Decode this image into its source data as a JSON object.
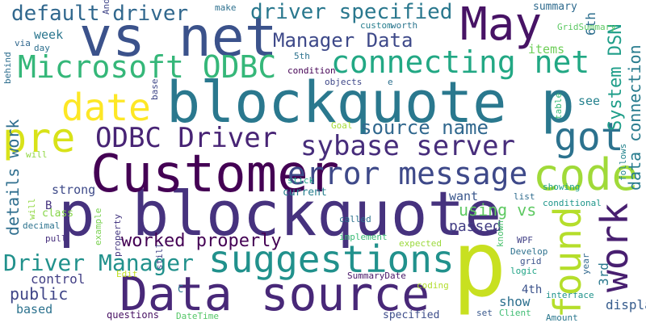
{
  "words": [
    {
      "text": "blockquote p",
      "color": "#2a788e"
    },
    {
      "text": "p blockquote",
      "color": "#46327e"
    },
    {
      "text": "vs net",
      "color": "#3b528b"
    },
    {
      "text": "Customer",
      "color": "#440154"
    },
    {
      "text": "Data source",
      "color": "#482878"
    },
    {
      "text": "May",
      "color": "#471365"
    },
    {
      "text": "p",
      "color": "#c8e020"
    },
    {
      "text": "suggestions",
      "color": "#21918c"
    },
    {
      "text": "connecting net",
      "color": "#22a884"
    },
    {
      "text": "Microsoft ODBC",
      "color": "#35b779"
    },
    {
      "text": "pre",
      "color": "#d8e219"
    },
    {
      "text": "date",
      "color": "#fde725"
    },
    {
      "text": "got",
      "color": "#2c728e"
    },
    {
      "text": "code",
      "color": "#a0da39"
    },
    {
      "text": "error message",
      "color": "#3e4989"
    },
    {
      "text": "sybase server",
      "color": "#472d7b"
    },
    {
      "text": "ODBC Driver",
      "color": "#482475"
    },
    {
      "text": "found",
      "color": "#b5de2b"
    },
    {
      "text": "work",
      "color": "#481f70"
    },
    {
      "text": "default driver",
      "color": "#31688e"
    },
    {
      "text": "driver specified",
      "color": "#2a788e"
    },
    {
      "text": "Manager Data",
      "color": "#3e4989"
    },
    {
      "text": "source name",
      "color": "#31688e"
    },
    {
      "text": "Driver Manager",
      "color": "#21918c"
    },
    {
      "text": "worked properly",
      "color": "#440154"
    },
    {
      "text": "System DSN",
      "color": "#1f9e89"
    },
    {
      "text": "data connection",
      "color": "#287c8e"
    },
    {
      "text": "details work",
      "color": "#2e6e8e"
    },
    {
      "text": "using vs",
      "color": "#5ec962"
    },
    {
      "text": "passed",
      "color": "#433e85"
    },
    {
      "text": "want",
      "color": "#39568c"
    },
    {
      "text": "public",
      "color": "#404688"
    },
    {
      "text": "control",
      "color": "#423f85"
    },
    {
      "text": "based",
      "color": "#2c728e"
    },
    {
      "text": "show",
      "color": "#2d708e"
    },
    {
      "text": "display",
      "color": "#365c8d"
    },
    {
      "text": "4th",
      "color": "#3b528b"
    },
    {
      "text": "3rd",
      "color": "#2a788e"
    },
    {
      "text": "items",
      "color": "#6ece58"
    },
    {
      "text": "see",
      "color": "#26828e"
    },
    {
      "text": "summary",
      "color": "#2f6b8e"
    },
    {
      "text": "week",
      "color": "#2a768e"
    },
    {
      "text": "6th",
      "color": "#2e6f8e"
    },
    {
      "text": "strong",
      "color": "#3e4a89"
    },
    {
      "text": "class",
      "color": "#86d549"
    },
    {
      "text": "B",
      "color": "#463480"
    },
    {
      "text": "current",
      "color": "#277f8e"
    },
    {
      "text": "called",
      "color": "#2c728e"
    },
    {
      "text": "list",
      "color": "#2f6c8e"
    },
    {
      "text": "conditional",
      "color": "#1f968b"
    },
    {
      "text": "showing",
      "color": "#1fa088"
    },
    {
      "text": "follows",
      "color": "#25848e"
    },
    {
      "text": "table",
      "color": "#38b977"
    },
    {
      "text": "expected",
      "color": "#9bd93c"
    },
    {
      "text": "known",
      "color": "#4ac16d"
    },
    {
      "text": "WPF",
      "color": "#424186"
    },
    {
      "text": "Develop",
      "color": "#2d718e"
    },
    {
      "text": "grid",
      "color": "#3b528b"
    },
    {
      "text": "logic",
      "color": "#20a486"
    },
    {
      "text": "year",
      "color": "#31688e"
    },
    {
      "text": "interface",
      "color": "#20938c"
    },
    {
      "text": "Amount",
      "color": "#2a778e"
    },
    {
      "text": "set",
      "color": "#38588c"
    },
    {
      "text": "Client",
      "color": "#3fbc73"
    },
    {
      "text": "specified",
      "color": "#3d4d8a"
    },
    {
      "text": "questions",
      "color": "#471063"
    },
    {
      "text": "DateTime",
      "color": "#55c667"
    },
    {
      "text": "SummaryDate",
      "color": "#481769"
    },
    {
      "text": "coding",
      "color": "#b2dd2d"
    },
    {
      "text": "Edit",
      "color": "#c2df23"
    },
    {
      "text": "C",
      "color": "#2a788e"
    },
    {
      "text": "still",
      "color": "#414487"
    },
    {
      "text": "example",
      "color": "#7ad151"
    },
    {
      "text": "property",
      "color": "#453781"
    },
    {
      "text": "pull",
      "color": "#472f7d"
    },
    {
      "text": "decimal",
      "color": "#2c738e"
    },
    {
      "text": "will",
      "color": "#91d742"
    },
    {
      "text": "implement",
      "color": "#3aba76"
    },
    {
      "text": "base",
      "color": "#3f4788"
    },
    {
      "text": "Goal",
      "color": "#a5db36"
    },
    {
      "text": "e",
      "color": "#2d708e"
    },
    {
      "text": "objects",
      "color": "#3f4889"
    },
    {
      "text": "condition",
      "color": "#440154"
    },
    {
      "text": "5th",
      "color": "#2c728e"
    },
    {
      "text": "stick",
      "color": "#1fa187"
    },
    {
      "text": "custom",
      "color": "#277e8e"
    },
    {
      "text": "worth",
      "color": "#2b758e"
    },
    {
      "text": "GridSummary",
      "color": "#5cc863"
    },
    {
      "text": "make",
      "color": "#2d708e"
    },
    {
      "text": "Andy",
      "color": "#404588"
    },
    {
      "text": "via",
      "color": "#31688e"
    },
    {
      "text": "day",
      "color": "#2d708e"
    },
    {
      "text": "behind",
      "color": "#2e6e8e"
    },
    {
      "text": "databound",
      "color": "#38588c"
    }
  ]
}
